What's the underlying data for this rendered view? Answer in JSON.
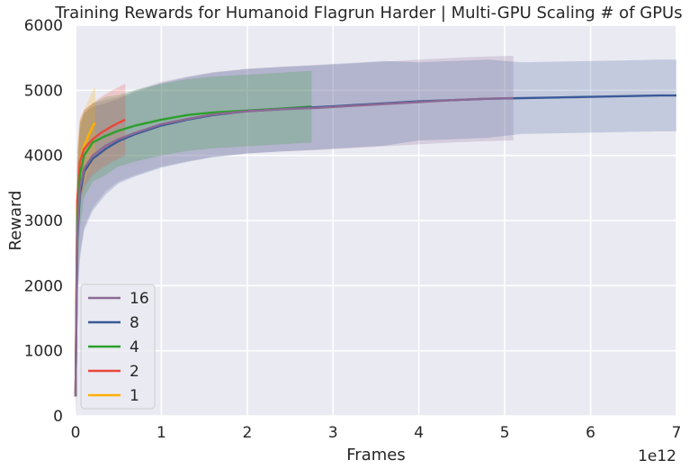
{
  "chart_data": {
    "type": "line",
    "title": "Training Rewards for Humanoid Flagrun Harder | Multi-GPU Scaling # of GPUs",
    "xlabel": "Frames",
    "ylabel": "Reward",
    "x_offset_label": "1e12",
    "xlim": [
      0,
      7
    ],
    "ylim": [
      0,
      6000
    ],
    "x_ticks": [
      0,
      1,
      2,
      3,
      4,
      5,
      6,
      7
    ],
    "y_ticks": [
      0,
      1000,
      2000,
      3000,
      4000,
      5000,
      6000
    ],
    "grid": true,
    "legend_position": "lower-left",
    "series": [
      {
        "name": "16",
        "color": "#8c6a93",
        "x": [
          0.0,
          0.02,
          0.05,
          0.1,
          0.2,
          0.35,
          0.5,
          0.7,
          1.0,
          1.3,
          1.6,
          2.0,
          2.4,
          2.8,
          3.2,
          3.6,
          4.0,
          4.4,
          4.8,
          5.1
        ],
        "y": [
          300,
          2800,
          3500,
          3800,
          4000,
          4150,
          4250,
          4350,
          4480,
          4560,
          4630,
          4680,
          4710,
          4730,
          4760,
          4790,
          4820,
          4850,
          4870,
          4880
        ],
        "band": [
          700,
          1000,
          1000,
          900,
          800,
          700,
          650,
          650,
          650,
          650,
          650,
          650,
          650,
          650,
          650,
          650,
          650,
          650,
          650,
          650
        ]
      },
      {
        "name": "8",
        "color": "#3a5a98",
        "x": [
          0.0,
          0.02,
          0.05,
          0.1,
          0.2,
          0.35,
          0.5,
          0.7,
          1.0,
          1.3,
          1.6,
          2.0,
          2.4,
          2.8,
          3.2,
          3.6,
          4.0,
          4.4,
          4.8,
          5.2,
          5.6,
          6.0,
          6.4,
          6.8,
          7.0
        ],
        "y": [
          300,
          2700,
          3400,
          3750,
          3950,
          4100,
          4220,
          4330,
          4460,
          4550,
          4620,
          4680,
          4710,
          4740,
          4770,
          4800,
          4830,
          4850,
          4870,
          4880,
          4890,
          4900,
          4910,
          4920,
          4920
        ],
        "band": [
          700,
          1000,
          1000,
          900,
          800,
          700,
          650,
          650,
          650,
          650,
          650,
          650,
          650,
          650,
          650,
          650,
          600,
          600,
          600,
          550,
          550,
          550,
          550,
          550,
          550
        ]
      },
      {
        "name": "4",
        "color": "#2ca02c",
        "x": [
          0.0,
          0.02,
          0.05,
          0.1,
          0.2,
          0.35,
          0.5,
          0.7,
          1.0,
          1.3,
          1.6,
          2.0,
          2.4,
          2.75
        ],
        "y": [
          300,
          3000,
          3700,
          4000,
          4200,
          4300,
          4380,
          4460,
          4550,
          4620,
          4660,
          4690,
          4720,
          4750
        ],
        "band": [
          700,
          900,
          800,
          650,
          600,
          600,
          550,
          550,
          550,
          550,
          550,
          550,
          550,
          550
        ]
      },
      {
        "name": "2",
        "color": "#e8473b",
        "x": [
          0.0,
          0.02,
          0.05,
          0.1,
          0.2,
          0.3,
          0.4,
          0.5,
          0.58
        ],
        "y": [
          300,
          3300,
          3900,
          4100,
          4250,
          4350,
          4430,
          4500,
          4550
        ],
        "band": [
          700,
          800,
          650,
          600,
          550,
          550,
          550,
          550,
          550
        ]
      },
      {
        "name": "1",
        "color": "#ffb000",
        "x": [
          0.0,
          0.02,
          0.05,
          0.1,
          0.15,
          0.2,
          0.23
        ],
        "y": [
          300,
          3300,
          3900,
          4150,
          4300,
          4450,
          4500
        ],
        "band": [
          700,
          800,
          650,
          550,
          550,
          550,
          550
        ]
      }
    ]
  }
}
